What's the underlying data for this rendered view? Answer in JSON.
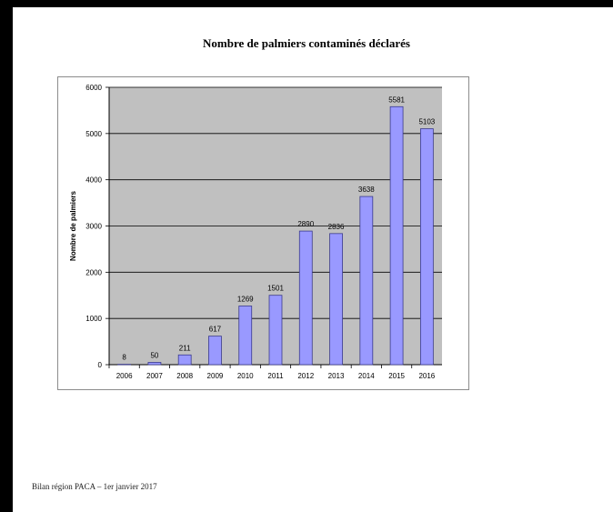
{
  "chart_data": {
    "type": "bar",
    "title": "Nombre de palmiers contaminés déclarés",
    "xlabel": "",
    "ylabel": "Nombre de palmiers",
    "categories": [
      "2006",
      "2007",
      "2008",
      "2009",
      "2010",
      "2011",
      "2012",
      "2013",
      "2014",
      "2015",
      "2016"
    ],
    "values": [
      8,
      50,
      211,
      617,
      1269,
      1501,
      2890,
      2836,
      3638,
      5581,
      5103
    ],
    "ylim": [
      0,
      6000
    ],
    "yticks": [
      0,
      1000,
      2000,
      3000,
      4000,
      5000,
      6000
    ],
    "grid": true,
    "legend": "none",
    "colors": {
      "bar_fill": "#9999ff",
      "bar_stroke": "#3a3a8c",
      "plot_background": "#c0c0c0",
      "gridline": "#000000"
    }
  },
  "footer": "Bilan région PACA – 1er janvier 2017"
}
